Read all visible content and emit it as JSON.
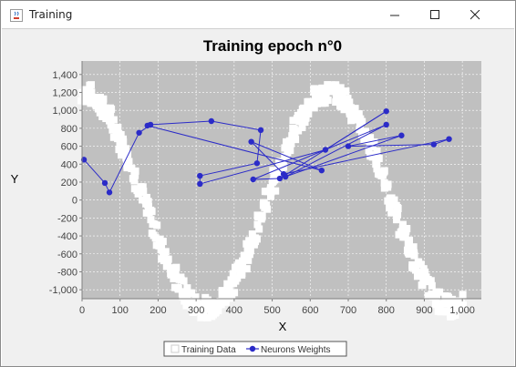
{
  "window": {
    "title": "Training"
  },
  "chart_data": {
    "type": "scatter",
    "title": "Training epoch n°0",
    "xlabel": "X",
    "ylabel": "Y",
    "xlim": [
      0,
      1050
    ],
    "ylim": [
      -1100,
      1550
    ],
    "xticks": [
      0,
      100,
      200,
      300,
      400,
      500,
      600,
      700,
      800,
      900,
      1000
    ],
    "xtick_labels": [
      "0",
      "100",
      "200",
      "300",
      "400",
      "500",
      "600",
      "700",
      "800",
      "900",
      "1,000"
    ],
    "yticks": [
      1400,
      1200,
      1000,
      800,
      600,
      400,
      200,
      0,
      -200,
      -400,
      -600,
      -800,
      -1000
    ],
    "ytick_labels": [
      "1,400",
      "1,200",
      "1,000",
      "800",
      "600",
      "400",
      "200",
      "0",
      "-200",
      "-400",
      "-600",
      "-800",
      "-1,000"
    ],
    "grid": true,
    "legend_position": "bottom",
    "plot_background": "#c0c0c0",
    "series": [
      {
        "name": "Training Data",
        "style": "squares",
        "color": "#ffffff",
        "function": "1200*sin(2*pi*x/650 + pi/2)",
        "x_range": [
          0,
          1000
        ],
        "noise_band": 120
      },
      {
        "name": "Neurons Weights",
        "style": "line-with-markers",
        "color": "#2b2bc8",
        "x": [
          5,
          60,
          72,
          150,
          180,
          340,
          470,
          460,
          310,
          310,
          640,
          800,
          520,
          450,
          800,
          535,
          840,
          700,
          925,
          965,
          530,
          445,
          630,
          172
        ],
        "y": [
          450,
          190,
          85,
          750,
          840,
          880,
          780,
          410,
          270,
          180,
          560,
          990,
          240,
          230,
          840,
          260,
          720,
          600,
          620,
          680,
          290,
          650,
          330,
          830
        ]
      }
    ]
  }
}
